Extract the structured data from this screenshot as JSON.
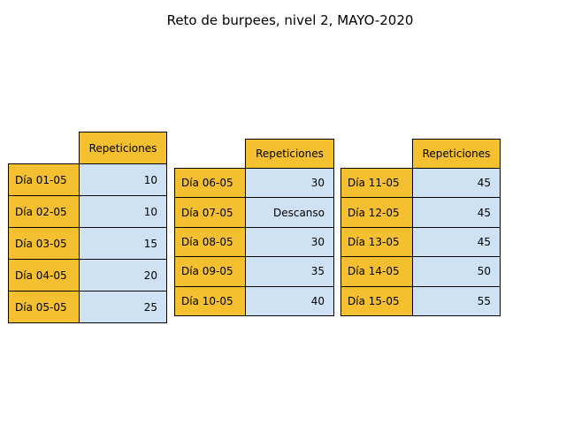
{
  "chart_data": {
    "type": "table",
    "title": "Reto de burpees, nivel 2, MAYO-2020",
    "tables": [
      {
        "column_header": "Repeticiones",
        "rows": [
          {
            "label": "Día 01-05",
            "value": "10"
          },
          {
            "label": "Día 02-05",
            "value": "10"
          },
          {
            "label": "Día 03-05",
            "value": "15"
          },
          {
            "label": "Día 04-05",
            "value": "20"
          },
          {
            "label": "Día 05-05",
            "value": "25"
          }
        ]
      },
      {
        "column_header": "Repeticiones",
        "rows": [
          {
            "label": "Día 06-05",
            "value": "30"
          },
          {
            "label": "Día 07-05",
            "value": "Descanso"
          },
          {
            "label": "Día 08-05",
            "value": "30"
          },
          {
            "label": "Día 09-05",
            "value": "35"
          },
          {
            "label": "Día 10-05",
            "value": "40"
          }
        ]
      },
      {
        "column_header": "Repeticiones",
        "rows": [
          {
            "label": "Día 11-05",
            "value": "45"
          },
          {
            "label": "Día 12-05",
            "value": "45"
          },
          {
            "label": "Día 13-05",
            "value": "45"
          },
          {
            "label": "Día 14-05",
            "value": "50"
          },
          {
            "label": "Día 15-05",
            "value": "55"
          }
        ]
      }
    ],
    "colors": {
      "header": "#f4c030",
      "label": "#f4c030",
      "value": "#cfe2f4"
    }
  }
}
